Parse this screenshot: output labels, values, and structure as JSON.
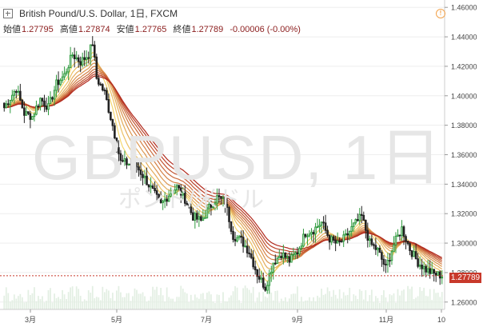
{
  "header": {
    "symbol": "British Pound/U.S. Dollar",
    "interval": "1日",
    "exchange": "FXCM",
    "title": "British Pound/U.S. Dollar, 1日, FXCM",
    "open_label": "始値",
    "open": "1.27795",
    "high_label": "高値",
    "high": "1.27874",
    "low_label": "安値",
    "low": "1.27765",
    "close_label": "終値",
    "close": "1.27789",
    "change": "-0.00006 (-0.00%)"
  },
  "watermark": {
    "ticker": "GBPUSD, 1日",
    "subtitle": "ポンド/米ドル"
  },
  "last_price_tag": "1.27789",
  "icons": {
    "expand": "expand-icon",
    "alert": "alert-icon"
  },
  "colors": {
    "up": "#2e9a3d",
    "down": "#222222",
    "ribbon_fast": "#f5d76e",
    "ribbon_slow": "#b22a1e",
    "price_line": "#c8392b",
    "volume": "#e3efe3"
  },
  "chart_data": {
    "type": "candlestick",
    "y_range": [
      1.255,
      1.465
    ],
    "y_ticks": [
      "1.26000",
      "1.28000",
      "1.30000",
      "1.32000",
      "1.34000",
      "1.36000",
      "1.38000",
      "1.40000",
      "1.42000",
      "1.44000",
      "1.46000"
    ],
    "x_ticks": [
      "3月",
      "5月",
      "7月",
      "9月",
      "11月",
      "10"
    ],
    "close_anchors": [
      [
        0,
        1.392
      ],
      [
        6,
        1.405
      ],
      [
        10,
        1.388
      ],
      [
        14,
        1.386
      ],
      [
        18,
        1.398
      ],
      [
        22,
        1.392
      ],
      [
        26,
        1.408
      ],
      [
        30,
        1.414
      ],
      [
        34,
        1.428
      ],
      [
        38,
        1.423
      ],
      [
        42,
        1.428
      ],
      [
        44,
        1.436
      ],
      [
        46,
        1.412
      ],
      [
        50,
        1.402
      ],
      [
        54,
        1.38
      ],
      [
        58,
        1.355
      ],
      [
        62,
        1.354
      ],
      [
        66,
        1.352
      ],
      [
        70,
        1.344
      ],
      [
        74,
        1.335
      ],
      [
        78,
        1.326
      ],
      [
        82,
        1.333
      ],
      [
        86,
        1.338
      ],
      [
        90,
        1.33
      ],
      [
        94,
        1.318
      ],
      [
        98,
        1.315
      ],
      [
        102,
        1.324
      ],
      [
        106,
        1.331
      ],
      [
        110,
        1.328
      ],
      [
        114,
        1.305
      ],
      [
        118,
        1.302
      ],
      [
        122,
        1.294
      ],
      [
        126,
        1.279
      ],
      [
        130,
        1.27
      ],
      [
        134,
        1.287
      ],
      [
        138,
        1.293
      ],
      [
        142,
        1.288
      ],
      [
        146,
        1.294
      ],
      [
        150,
        1.307
      ],
      [
        154,
        1.309
      ],
      [
        158,
        1.314
      ],
      [
        162,
        1.303
      ],
      [
        166,
        1.299
      ],
      [
        170,
        1.304
      ],
      [
        174,
        1.312
      ],
      [
        178,
        1.318
      ],
      [
        182,
        1.3
      ],
      [
        186,
        1.295
      ],
      [
        190,
        1.283
      ],
      [
        194,
        1.299
      ],
      [
        198,
        1.31
      ],
      [
        202,
        1.296
      ],
      [
        206,
        1.287
      ],
      [
        210,
        1.282
      ],
      [
        214,
        1.279
      ],
      [
        218,
        1.278
      ]
    ],
    "ribbon": {
      "count": 9,
      "shift_range": [
        -0.012,
        0.0
      ]
    },
    "last_price": 1.27789
  }
}
